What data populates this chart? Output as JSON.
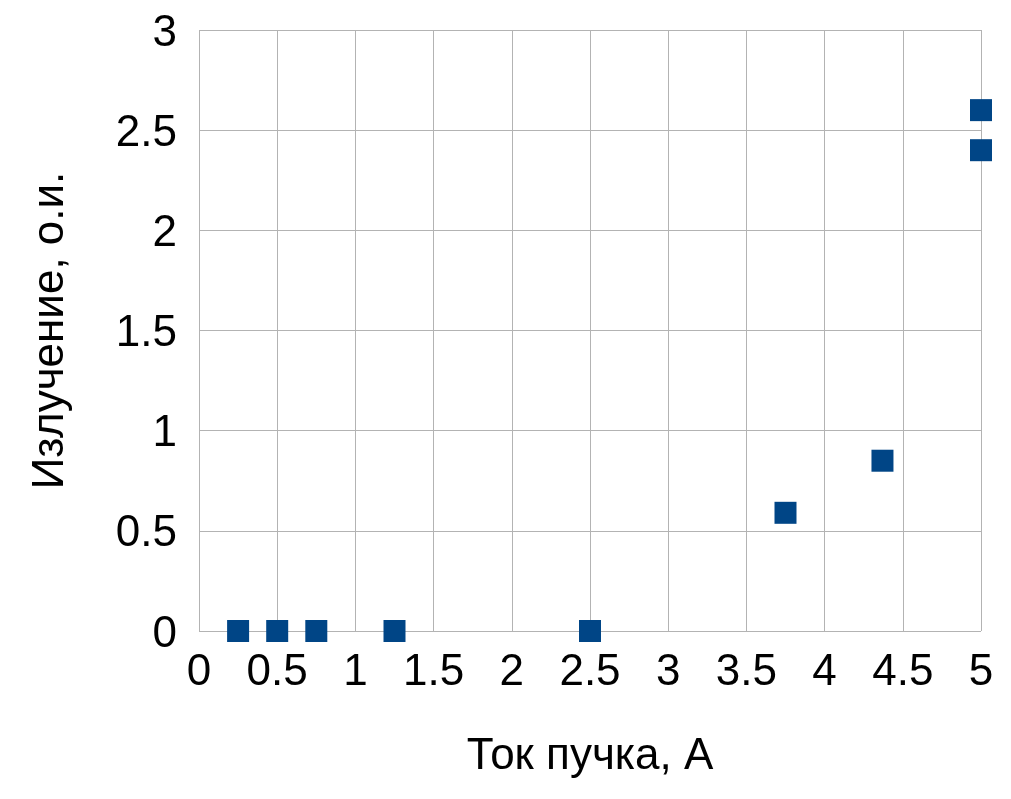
{
  "chart_data": {
    "type": "scatter",
    "xlabel": "Ток пучка, А",
    "ylabel": "Излучение, о.и.",
    "x": [
      0.25,
      0.5,
      0.75,
      1.25,
      2.5,
      3.75,
      4.37,
      5,
      5
    ],
    "series": [
      {
        "color": "#004586",
        "values": [
          0,
          0,
          0,
          0,
          0,
          0.59,
          0.85,
          2.4,
          2.6
        ]
      }
    ],
    "xlim": [
      0,
      5
    ],
    "xticks": [
      0,
      0.5,
      1,
      1.5,
      2,
      2.5,
      3,
      3.5,
      4,
      4.5,
      5
    ],
    "ylim": [
      0,
      3
    ],
    "yticks": [
      0,
      0.5,
      1,
      1.5,
      2,
      2.5,
      3
    ],
    "grid": true,
    "marker": "square"
  }
}
